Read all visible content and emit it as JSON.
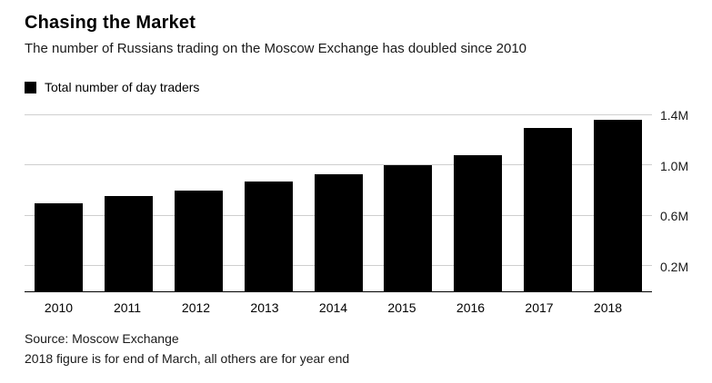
{
  "chart_data": {
    "type": "bar",
    "title": "Chasing the Market",
    "subtitle": "The number of Russians trading on the Moscow Exchange has doubled since 2010",
    "legend": [
      {
        "label": "Total number of day traders",
        "color": "#000000"
      }
    ],
    "categories": [
      "2010",
      "2011",
      "2012",
      "2013",
      "2014",
      "2015",
      "2016",
      "2017",
      "2018"
    ],
    "values": [
      0.7,
      0.76,
      0.8,
      0.87,
      0.93,
      1.0,
      1.08,
      1.3,
      1.36
    ],
    "unit": "M",
    "ylabel": "",
    "xlabel": "",
    "ylim": [
      0,
      1.46
    ],
    "yticks": [
      {
        "value": 0.2,
        "label": "0.2M"
      },
      {
        "value": 0.6,
        "label": "0.6M"
      },
      {
        "value": 1.0,
        "label": "1.0M"
      },
      {
        "value": 1.4,
        "label": "1.4M"
      }
    ],
    "ytick_side": "right",
    "grid": true,
    "bar_color": "#000000",
    "background": "#ffffff",
    "source": "Source: Moscow Exchange",
    "footnote": "2018 figure is for end of March, all others are for year end"
  }
}
